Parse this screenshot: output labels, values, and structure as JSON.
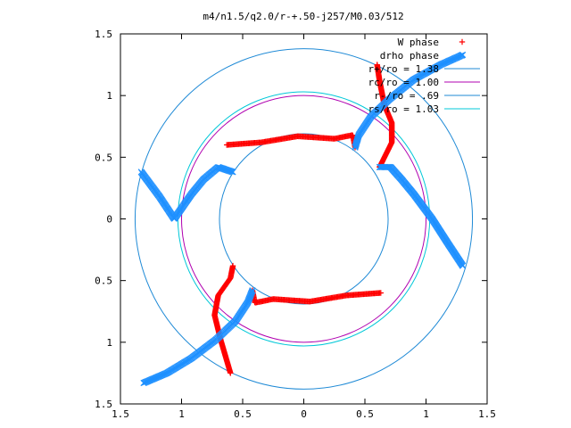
{
  "chart_data": {
    "type": "scatter",
    "title": "m4/n1.5/q2.0/r-+.50-j257/M0.03/512",
    "xlabel": "",
    "ylabel": "",
    "xlim": [
      -1.5,
      1.5
    ],
    "ylim": [
      -1.5,
      1.5
    ],
    "x_tick_values": [
      -1.5,
      -1,
      -0.5,
      0,
      0.5,
      1,
      1.5
    ],
    "x_tick_labels": [
      "1.5",
      "1",
      "0.5",
      "0",
      "0.5",
      "1",
      "1.5"
    ],
    "y_tick_values": [
      1.5,
      1,
      0.5,
      0,
      -0.5,
      -1,
      -1.5
    ],
    "y_tick_labels": [
      "1.5",
      "1",
      "0.5",
      "0",
      "0.5",
      "1",
      "1.5"
    ],
    "grid": false,
    "legend_position": "top-right",
    "series": [
      {
        "name": "W phase",
        "marker": "plus",
        "color": "#ff0000",
        "arms": [
          [
            [
              0.6,
              1.25
            ],
            [
              0.62,
              1.12
            ],
            [
              0.66,
              0.92
            ],
            [
              0.72,
              0.78
            ],
            [
              0.72,
              0.62
            ],
            [
              0.62,
              0.42
            ]
          ],
          [
            [
              0.42,
              0.58
            ],
            [
              0.4,
              0.68
            ],
            [
              0.25,
              0.65
            ],
            [
              -0.05,
              0.67
            ],
            [
              -0.35,
              0.62
            ],
            [
              -0.63,
              0.6
            ]
          ],
          [
            [
              -0.58,
              -0.38
            ],
            [
              -0.6,
              -0.48
            ],
            [
              -0.7,
              -0.62
            ],
            [
              -0.73,
              -0.78
            ],
            [
              -0.68,
              -0.98
            ],
            [
              -0.6,
              -1.25
            ]
          ],
          [
            [
              -0.42,
              -0.58
            ],
            [
              -0.4,
              -0.68
            ],
            [
              -0.25,
              -0.65
            ],
            [
              0.05,
              -0.67
            ],
            [
              0.35,
              -0.62
            ],
            [
              0.63,
              -0.6
            ]
          ]
        ]
      },
      {
        "name": "drho phase",
        "marker": "cross",
        "color": "#1e90ff",
        "arms": [
          [
            [
              0.62,
              0.42
            ],
            [
              0.71,
              0.42
            ],
            [
              0.8,
              0.32
            ],
            [
              0.9,
              0.2
            ],
            [
              1.05,
              0.0
            ],
            [
              1.18,
              -0.2
            ],
            [
              1.3,
              -0.38
            ]
          ],
          [
            [
              0.42,
              0.58
            ],
            [
              0.45,
              0.68
            ],
            [
              0.55,
              0.83
            ],
            [
              0.7,
              0.97
            ],
            [
              0.9,
              1.13
            ],
            [
              1.12,
              1.25
            ],
            [
              1.3,
              1.33
            ]
          ],
          [
            [
              -0.58,
              0.38
            ],
            [
              -0.7,
              0.42
            ],
            [
              -0.82,
              0.32
            ],
            [
              -0.92,
              0.2
            ],
            [
              -1.06,
              0.0
            ],
            [
              -1.18,
              0.18
            ],
            [
              -1.33,
              0.38
            ]
          ],
          [
            [
              -0.42,
              -0.58
            ],
            [
              -0.46,
              -0.68
            ],
            [
              -0.56,
              -0.83
            ],
            [
              -0.72,
              -0.98
            ],
            [
              -0.92,
              -1.13
            ],
            [
              -1.12,
              -1.25
            ],
            [
              -1.31,
              -1.33
            ]
          ]
        ]
      },
      {
        "name": "r+/ro = 1.38",
        "type": "circle",
        "radius": 1.38,
        "color": "#1f8ad6"
      },
      {
        "name": "rc/ro = 1.00",
        "type": "circle",
        "radius": 1.0,
        "color": "#b000b0"
      },
      {
        "name": "r-/ro = .69",
        "type": "circle",
        "radius": 0.69,
        "color": "#1f8ad6"
      },
      {
        "name": "rs/ro = 1.03",
        "type": "circle",
        "radius": 1.03,
        "color": "#00c8d8"
      }
    ]
  }
}
